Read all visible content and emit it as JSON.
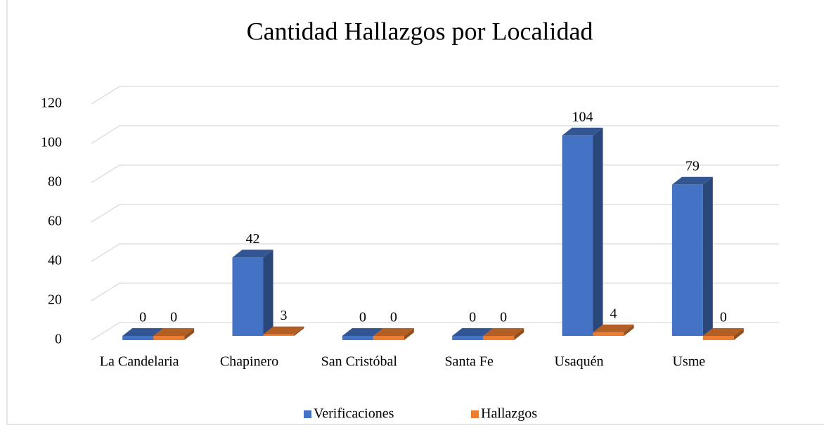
{
  "chart_data": {
    "type": "bar3d",
    "title": "Cantidad Hallazgos por Localidad",
    "categories": [
      "La Candelaria",
      "Chapinero",
      "San Cristóbal",
      "Santa Fe",
      "Usaquén",
      "Usme"
    ],
    "series": [
      {
        "name": "Verificaciones",
        "color": "#4472c4",
        "values": [
          0,
          42,
          0,
          0,
          104,
          79
        ]
      },
      {
        "name": "Hallazgos",
        "color": "#ed7d31",
        "values": [
          0,
          3,
          0,
          0,
          4,
          0
        ]
      }
    ],
    "ylim": [
      0,
      120
    ],
    "yticks": [
      0,
      20,
      40,
      60,
      80,
      100,
      120
    ],
    "grid": true,
    "legend": "bottom"
  }
}
